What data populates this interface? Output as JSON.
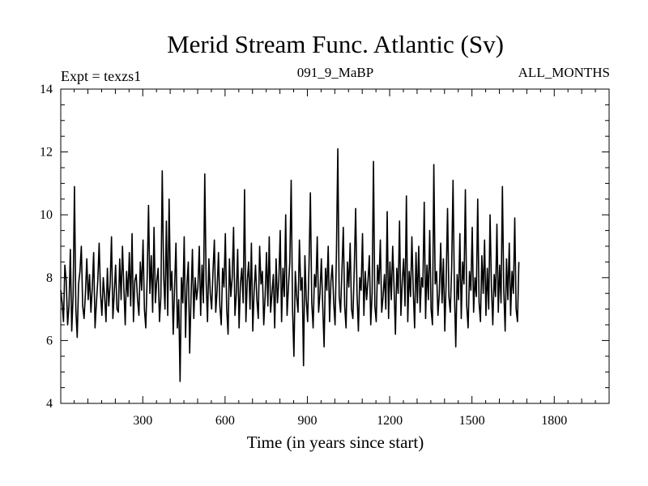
{
  "chart_data": {
    "type": "line",
    "title": "Merid Stream Func. Atlantic (Sv)",
    "subtitle_left": "Expt = texzs1",
    "subtitle_center": "091_9_MaBP",
    "subtitle_right": "ALL_MONTHS",
    "xlabel": "Time (in years since start)",
    "ylabel": "",
    "xlim": [
      1,
      2000
    ],
    "ylim": [
      4,
      14
    ],
    "xticks": [
      300,
      600,
      900,
      1200,
      1500,
      1800
    ],
    "xtick_labels": [
      "300",
      "600",
      "900",
      "1200",
      "1500",
      "1800"
    ],
    "yticks": [
      4,
      6,
      8,
      10,
      12,
      14
    ],
    "ytick_labels": [
      "4",
      "6",
      "8",
      "10",
      "12",
      "14"
    ],
    "series": [
      {
        "name": "Merid Stream Func. Atlantic",
        "color": "#000000",
        "x_start": 1,
        "x_step": 5,
        "values": [
          7.6,
          7.2,
          6.6,
          8.4,
          7.9,
          6.5,
          7.1,
          8.9,
          6.3,
          7.4,
          10.9,
          7.0,
          6.1,
          7.8,
          8.2,
          9.0,
          7.1,
          6.7,
          7.5,
          8.6,
          7.3,
          8.1,
          6.9,
          7.7,
          8.8,
          6.4,
          7.2,
          7.9,
          9.1,
          7.5,
          6.8,
          8.0,
          7.4,
          6.6,
          8.3,
          7.1,
          7.8,
          9.3,
          6.7,
          7.5,
          8.4,
          7.0,
          6.9,
          8.6,
          7.3,
          9.0,
          7.7,
          6.5,
          8.2,
          7.4,
          8.8,
          7.1,
          9.4,
          6.6,
          7.9,
          8.1,
          7.3,
          6.8,
          8.5,
          7.6,
          9.2,
          7.0,
          6.4,
          8.0,
          10.3,
          7.5,
          8.7,
          6.9,
          9.6,
          7.2,
          7.9,
          8.3,
          6.6,
          7.4,
          11.4,
          8.1,
          7.0,
          9.8,
          6.8,
          10.5,
          7.6,
          8.2,
          6.2,
          7.7,
          9.1,
          6.4,
          7.3,
          4.7,
          8.0,
          7.2,
          9.3,
          6.1,
          7.8,
          8.5,
          5.6,
          7.4,
          8.9,
          6.7,
          8.0,
          7.3,
          7.7,
          9.0,
          6.8,
          8.4,
          7.2,
          11.3,
          7.9,
          6.6,
          8.6,
          7.5,
          7.0,
          8.2,
          9.2,
          6.9,
          7.6,
          8.8,
          7.1,
          6.5,
          8.3,
          7.7,
          9.4,
          7.0,
          6.2,
          8.6,
          7.4,
          8.0,
          9.6,
          6.8,
          7.5,
          8.9,
          6.4,
          7.8,
          8.3,
          7.2,
          10.8,
          6.6,
          7.9,
          8.5,
          7.0,
          9.1,
          6.3,
          7.6,
          8.4,
          7.3,
          6.7,
          9.0,
          7.8,
          8.2,
          6.5,
          7.4,
          8.8,
          7.1,
          9.3,
          6.9,
          7.5,
          8.1,
          6.4,
          8.6,
          7.2,
          7.9,
          9.5,
          6.6,
          8.3,
          7.4,
          10.0,
          6.8,
          7.7,
          8.5,
          11.1,
          7.0,
          5.5,
          8.2,
          7.4,
          6.9,
          9.2,
          7.6,
          8.0,
          5.2,
          8.7,
          7.3,
          6.6,
          8.4,
          10.7,
          7.2,
          6.4,
          8.1,
          7.7,
          9.3,
          6.9,
          7.5,
          8.6,
          7.1,
          5.8,
          8.3,
          7.6,
          9.0,
          6.6,
          7.9,
          8.4,
          7.2,
          6.5,
          8.8,
          12.1,
          7.4,
          6.9,
          8.2,
          9.6,
          7.1,
          6.4,
          8.5,
          7.7,
          9.1,
          7.0,
          6.7,
          8.3,
          10.2,
          7.5,
          6.3,
          8.0,
          7.6,
          9.4,
          6.8,
          8.2,
          7.3,
          7.9,
          8.7,
          6.5,
          7.5,
          11.7,
          7.1,
          6.6,
          8.4,
          7.8,
          9.2,
          6.9,
          7.4,
          8.1,
          7.0,
          10.1,
          6.7,
          8.5,
          7.3,
          9.0,
          7.7,
          6.2,
          8.3,
          7.5,
          9.8,
          6.8,
          7.9,
          8.6,
          7.1,
          10.6,
          6.6,
          8.2,
          7.4,
          9.3,
          7.6,
          6.4,
          8.8,
          7.2,
          9.0,
          6.9,
          8.0,
          7.7,
          10.4,
          6.7,
          8.4,
          7.3,
          9.5,
          7.0,
          6.5,
          11.6,
          7.8,
          8.2,
          6.8,
          7.5,
          9.1,
          7.2,
          8.6,
          6.3,
          7.9,
          10.2,
          7.4,
          6.9,
          8.3,
          11.1,
          7.6,
          5.8,
          8.1,
          7.3,
          9.4,
          6.7,
          8.5,
          7.8,
          10.8,
          7.1,
          6.4,
          8.2,
          7.6,
          9.6,
          6.9,
          8.0,
          7.4,
          10.5,
          7.2,
          6.6,
          8.7,
          7.5,
          9.2,
          6.8,
          8.3,
          7.0,
          10.0,
          7.7,
          6.5,
          8.1,
          7.4,
          9.7,
          6.9,
          8.4,
          7.2,
          10.9,
          7.6,
          6.3,
          8.6,
          7.3,
          9.1,
          6.8,
          8.2,
          7.5,
          9.9,
          7.0,
          6.6,
          8.5
        ]
      }
    ]
  }
}
